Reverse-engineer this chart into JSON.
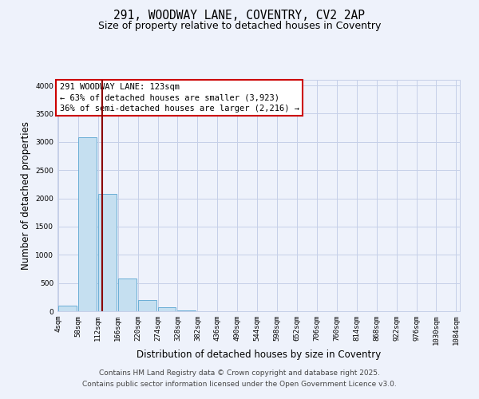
{
  "title_line1": "291, WOODWAY LANE, COVENTRY, CV2 2AP",
  "title_line2": "Size of property relative to detached houses in Coventry",
  "xlabel": "Distribution of detached houses by size in Coventry",
  "ylabel": "Number of detached properties",
  "bar_values": [
    100,
    3080,
    2080,
    580,
    200,
    70,
    20,
    5,
    2,
    1,
    0,
    0,
    0,
    0,
    0,
    0,
    0,
    0,
    0,
    0
  ],
  "bin_labels": [
    "4sqm",
    "58sqm",
    "112sqm",
    "166sqm",
    "220sqm",
    "274sqm",
    "328sqm",
    "382sqm",
    "436sqm",
    "490sqm",
    "544sqm",
    "598sqm",
    "652sqm",
    "706sqm",
    "760sqm",
    "814sqm",
    "868sqm",
    "922sqm",
    "976sqm",
    "1030sqm",
    "1084sqm"
  ],
  "bin_edges": [
    4,
    58,
    112,
    166,
    220,
    274,
    328,
    382,
    436,
    490,
    544,
    598,
    652,
    706,
    760,
    814,
    868,
    922,
    976,
    1030,
    1084
  ],
  "bar_color": "#c5dff0",
  "bar_edgecolor": "#6aaed6",
  "property_line_x": 123,
  "property_line_color": "#8b0000",
  "ylim": [
    0,
    4100
  ],
  "yticks": [
    0,
    500,
    1000,
    1500,
    2000,
    2500,
    3000,
    3500,
    4000
  ],
  "annotation_title": "291 WOODWAY LANE: 123sqm",
  "annotation_line1": "← 63% of detached houses are smaller (3,923)",
  "annotation_line2": "36% of semi-detached houses are larger (2,216) →",
  "annotation_box_color": "#ffffff",
  "annotation_box_edgecolor": "#cc0000",
  "footer_line1": "Contains HM Land Registry data © Crown copyright and database right 2025.",
  "footer_line2": "Contains public sector information licensed under the Open Government Licence v3.0.",
  "bg_color": "#eef2fb",
  "plot_bg_color": "#eef2fb",
  "grid_color": "#c5cfe8",
  "title_fontsize": 10.5,
  "subtitle_fontsize": 9,
  "label_fontsize": 8.5,
  "tick_fontsize": 6.5,
  "footer_fontsize": 6.5,
  "annotation_fontsize": 7.5
}
